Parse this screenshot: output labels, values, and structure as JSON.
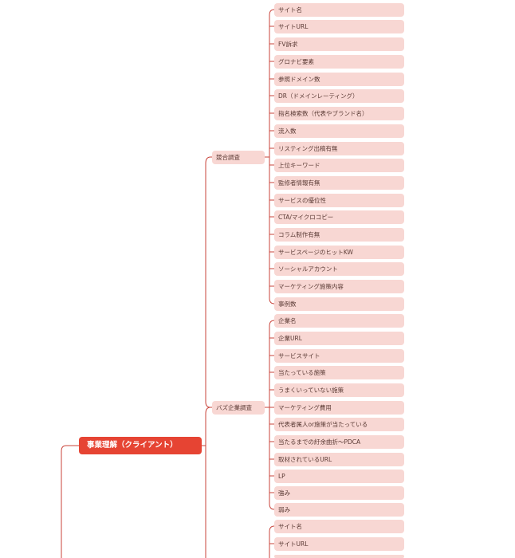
{
  "colors": {
    "accent": "#e64433",
    "node_fill": "#f8d7d3",
    "node_text": "#5b3b35",
    "connector": "#c9433a"
  },
  "root": {
    "label": "事業理解（クライアント）"
  },
  "branches": {
    "competitive": {
      "label": "競合調査",
      "items": [
        "サイト名",
        "サイトURL",
        "FV訴求",
        "グロナビ要素",
        "参照ドメイン数",
        "DR（ドメインレーティング）",
        "指名検索数（代表やブランド名）",
        "流入数",
        "リスティング出稿有無",
        "上位キーワード",
        "監修者情報有無",
        "サービスの優位性",
        "CTA/マイクロコピー",
        "コラム制作有無",
        "サービスページのヒットKW",
        "ソーシャルアカウント",
        "マーケティング施策内容",
        "事例数"
      ]
    },
    "buzz": {
      "label": "バズ企業調査",
      "items": [
        "企業名",
        "企業URL",
        "サービスサイト",
        "当たっている施策",
        "うまくいっていない施策",
        "マーケティング費用",
        "代表者属人or施策が当たっている",
        "当たるまでの紆余曲折〜PDCA",
        "取材されているURL",
        "LP",
        "強み",
        "弱み"
      ]
    },
    "third": {
      "items": [
        "サイト名",
        "サイトURL"
      ]
    }
  }
}
